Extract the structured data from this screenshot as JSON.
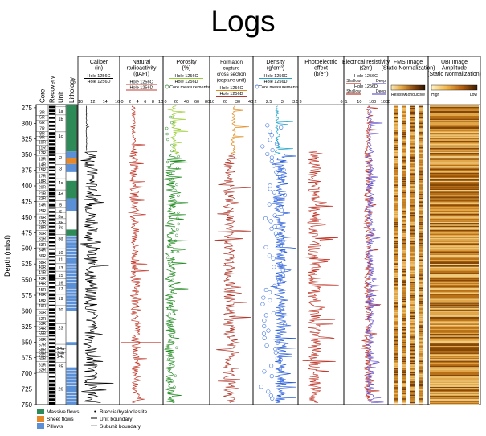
{
  "title": "Logs",
  "chart_data": {
    "type": "line",
    "title": "Logs",
    "ylabel": "Depth (mbsf)",
    "ylim": [
      750,
      270
    ],
    "yticks": [
      275,
      300,
      325,
      350,
      375,
      400,
      425,
      450,
      475,
      500,
      525,
      550,
      575,
      600,
      625,
      650,
      675,
      700,
      725,
      750
    ],
    "core_col_labels": [
      "Core",
      "Recovery",
      "Unit",
      "Lithology"
    ],
    "cores": [
      {
        "label": "3R",
        "depth": 282
      },
      {
        "label": "5R",
        "depth": 290
      },
      {
        "label": "6R",
        "depth": 298
      },
      {
        "label": "7R",
        "depth": 308
      },
      {
        "label": "8R",
        "depth": 316
      },
      {
        "label": "9R",
        "depth": 322
      },
      {
        "label": "10R",
        "depth": 330
      },
      {
        "label": "11R",
        "depth": 339
      },
      {
        "label": "12R",
        "depth": 347
      },
      {
        "label": "13R",
        "depth": 357
      },
      {
        "label": "14R",
        "depth": 366
      },
      {
        "label": "15R",
        "depth": 374
      },
      {
        "label": "17R",
        "depth": 384
      },
      {
        "label": "18R",
        "depth": 392
      },
      {
        "label": "20R",
        "depth": 402
      },
      {
        "label": "21R",
        "depth": 412
      },
      {
        "label": "22R",
        "depth": 420
      },
      {
        "label": "24R",
        "depth": 430
      },
      {
        "label": "25R",
        "depth": 440
      },
      {
        "label": "26R",
        "depth": 450
      },
      {
        "label": "27R",
        "depth": 458
      },
      {
        "label": "28R",
        "depth": 466
      },
      {
        "label": "30R",
        "depth": 476
      },
      {
        "label": "31R",
        "depth": 484
      },
      {
        "label": "33R",
        "depth": 494
      },
      {
        "label": "34R",
        "depth": 502
      },
      {
        "label": "36R",
        "depth": 512
      },
      {
        "label": "38R",
        "depth": 522
      },
      {
        "label": "40R",
        "depth": 530
      },
      {
        "label": "41R",
        "depth": 538
      },
      {
        "label": "43R",
        "depth": 548
      },
      {
        "label": "44R",
        "depth": 556
      },
      {
        "label": "45R",
        "depth": 566
      },
      {
        "label": "46R",
        "depth": 574
      },
      {
        "label": "48R",
        "depth": 584
      },
      {
        "label": "49R",
        "depth": 592
      },
      {
        "label": "50R",
        "depth": 602
      },
      {
        "label": "52R",
        "depth": 612
      },
      {
        "label": "53R",
        "depth": 620
      },
      {
        "label": "54R",
        "depth": 628
      },
      {
        "label": "55R",
        "depth": 636
      },
      {
        "label": "56R",
        "depth": 646
      },
      {
        "label": "57R",
        "depth": 654
      },
      {
        "label": "58R",
        "depth": 662
      },
      {
        "label": "59R",
        "depth": 668
      },
      {
        "label": "60R",
        "depth": 676
      },
      {
        "label": "61R",
        "depth": 686
      },
      {
        "label": "62R",
        "depth": 694
      }
    ],
    "units": [
      {
        "label": "1a",
        "depth": 280
      },
      {
        "label": "1b",
        "depth": 293
      },
      {
        "label": "1c",
        "depth": 320
      },
      {
        "label": "2",
        "depth": 355
      },
      {
        "label": "3",
        "depth": 372
      },
      {
        "label": "4c",
        "depth": 395
      },
      {
        "label": "4d",
        "depth": 413
      },
      {
        "label": "5",
        "depth": 430
      },
      {
        "label": "6",
        "depth": 441
      },
      {
        "label": "8a",
        "depth": 449
      },
      {
        "label": "8b",
        "depth": 459
      },
      {
        "label": "8c",
        "depth": 466
      },
      {
        "label": "8d",
        "depth": 484
      },
      {
        "label": "10",
        "depth": 507
      },
      {
        "label": "11",
        "depth": 518
      },
      {
        "label": "13",
        "depth": 531
      },
      {
        "label": "15",
        "depth": 543
      },
      {
        "label": "16",
        "depth": 555
      },
      {
        "label": "17",
        "depth": 565
      },
      {
        "label": "19",
        "depth": 580
      },
      {
        "label": "20",
        "depth": 598
      },
      {
        "label": "23",
        "depth": 627
      },
      {
        "label": "24a",
        "depth": 660
      },
      {
        "label": "24b",
        "depth": 667
      },
      {
        "label": "24c",
        "depth": 673
      },
      {
        "label": "25",
        "depth": 689
      },
      {
        "label": "26",
        "depth": 725
      }
    ],
    "tracks": [
      {
        "name": "Caliper",
        "title": [
          "Caliper",
          "(in)"
        ],
        "legend": [
          "Hole 1256C",
          "Hole 1256D"
        ],
        "ticks": [
          "10",
          "12",
          "14",
          "16"
        ],
        "xlim": [
          10,
          16
        ],
        "series_colors": [
          "#000000"
        ]
      },
      {
        "name": "Natural radioactivity",
        "title": [
          "Natural",
          "radioactivity",
          "(gAPI)"
        ],
        "legend": [
          "Hole 1256C",
          "Hole 1256D"
        ],
        "ticks": [
          "0",
          "2",
          "4",
          "6",
          "8",
          "10"
        ],
        "xlim": [
          0,
          10
        ],
        "series_colors": [
          "#c0392b"
        ]
      },
      {
        "name": "Porosity",
        "title": [
          "Porosity",
          "(%)"
        ],
        "legend": [
          "Hole 1256C",
          "Hole 1256D",
          "Core measurements"
        ],
        "ticks": [
          "0",
          "20",
          "40",
          "60",
          "80"
        ],
        "xlim": [
          0,
          80
        ],
        "series_colors": [
          "#9acd32",
          "#228b22"
        ]
      },
      {
        "name": "Formation capture cross section",
        "title": [
          "Formation",
          "capture",
          "cross section",
          "(capture unit)"
        ],
        "legend": [
          "Hole 1256C",
          "Hole 1256D"
        ],
        "ticks": [
          "10",
          "20",
          "30",
          "40"
        ],
        "xlim": [
          10,
          40
        ],
        "series_colors": [
          "#e08a1e",
          "#b03a2e"
        ]
      },
      {
        "name": "Density",
        "title": [
          "Density",
          "(g/cm³)"
        ],
        "legend": [
          "Hole 1256C",
          "Hole 1256D",
          "Core measurements"
        ],
        "ticks": [
          "2",
          "2.5",
          "3",
          "3.5"
        ],
        "xlim": [
          2,
          3.5
        ],
        "series_colors": [
          "#1fa3c8",
          "#2b5fd9"
        ]
      },
      {
        "name": "Photoelectric effect",
        "title": [
          "Photoelectric",
          "effect",
          "(b/e⁻)"
        ],
        "legend": [],
        "ticks": [
          "3",
          "6"
        ],
        "xlim": [
          2,
          8
        ],
        "series_colors": [
          "#c0392b"
        ]
      },
      {
        "name": "Electrical resistivity",
        "title": [
          "Electrical resistivity",
          "(Ωm)"
        ],
        "legend": [
          "Hole 1256C",
          "Shallow",
          "Deep",
          "Hole 1256D",
          "Shallow",
          "Deep"
        ],
        "ticks": [
          "1",
          "10",
          "100",
          "1000"
        ],
        "xlim": [
          1,
          1000
        ],
        "series_colors": [
          "#c0392b",
          "#6a5acd"
        ]
      },
      {
        "name": "FMS Image",
        "title": [
          "FMS Image",
          "(Static Normalization)"
        ],
        "legend": [
          "Resistive",
          "Conductive"
        ],
        "ticks": [],
        "series_colors": [
          "#c57a1e"
        ]
      },
      {
        "name": "UBI Image Amplitude",
        "title": [
          "UBI Image",
          "Amplitude",
          "(Static Normalization)"
        ],
        "legend": [
          "High",
          "Low"
        ],
        "ticks": [],
        "series_colors": [
          "#c57a1e"
        ]
      }
    ],
    "lithology_legend": [
      {
        "label": "Massive flows",
        "color": "#2e8b57"
      },
      {
        "label": "Sheet flows",
        "color": "#e6892a"
      },
      {
        "label": "Pillows",
        "color": "#5b8fd6"
      },
      {
        "label": "Breccia/hyaloclastite",
        "color": "#000000"
      },
      {
        "label": "Unit boundary",
        "color": "#000000"
      },
      {
        "label": "Subunit boundary",
        "color": "#000000"
      }
    ]
  }
}
